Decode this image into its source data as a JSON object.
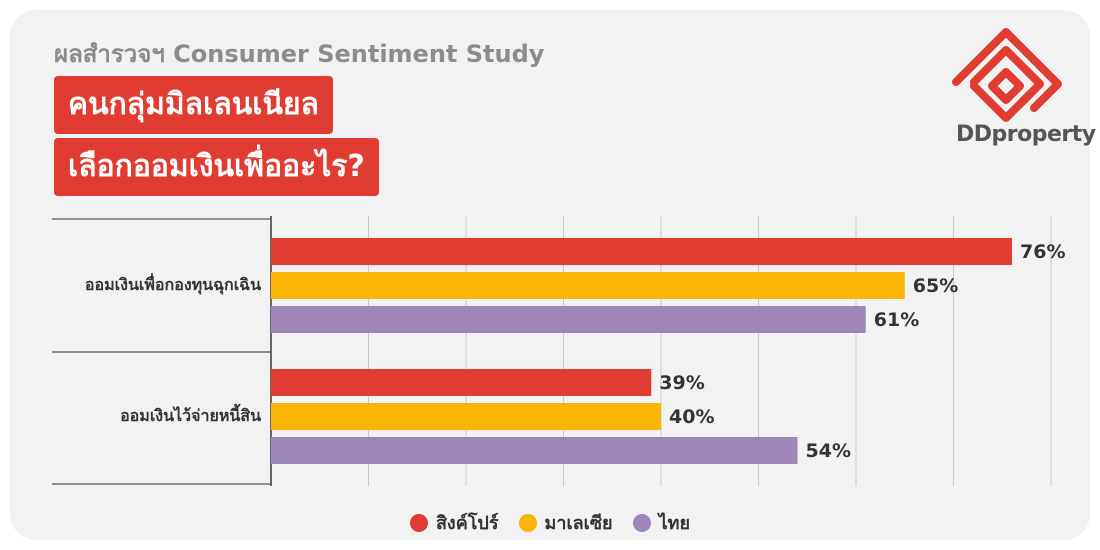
{
  "header": {
    "subtitle": "ผลสำรวจฯ Consumer Sentiment Study",
    "title_line_1": "คนกลุ่มมิลเลนเนียล",
    "title_line_2": "เลือกออมเงินเพื่ออะไร?"
  },
  "logo": {
    "text": "DDproperty",
    "brand_color": "#e03c31"
  },
  "chart_data": {
    "type": "bar",
    "orientation": "horizontal",
    "categories": [
      "ออมเงินเพื่อกองทุนฉุกเฉิน",
      "ออมเงินไว้จ่ายหนี้สิน"
    ],
    "series": [
      {
        "name": "สิงค์โปร์",
        "color": "#e03c31",
        "values": [
          76,
          39
        ]
      },
      {
        "name": "มาเลเซีย",
        "color": "#fab504",
        "values": [
          65,
          40
        ]
      },
      {
        "name": "ไทย",
        "color": "#9e86b8",
        "values": [
          61,
          54
        ]
      }
    ],
    "value_suffix": "%",
    "xlim": [
      0,
      80
    ],
    "grid": true,
    "legend_position": "bottom"
  }
}
